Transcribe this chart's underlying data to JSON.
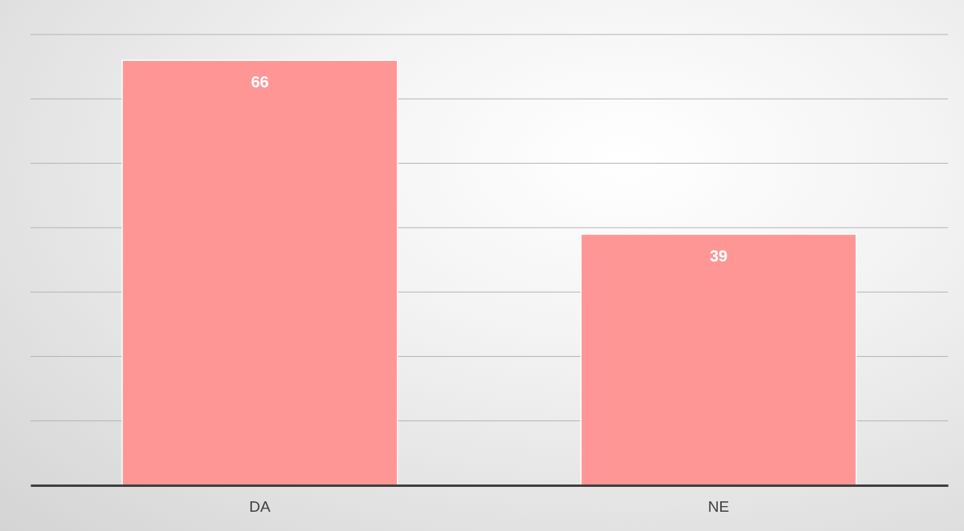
{
  "chart_data": {
    "type": "bar",
    "categories": [
      "DA",
      "NE"
    ],
    "values": [
      66,
      39
    ],
    "color": "#ff9696",
    "ylim": [
      0,
      70
    ],
    "yticks": [
      {
        "value": 0,
        "label": null
      },
      {
        "value": 10,
        "label": null
      },
      {
        "value": 20,
        "label": null
      },
      {
        "value": 30,
        "label": null
      },
      {
        "value": 40,
        "label": null
      },
      {
        "value": 50,
        "label": null
      },
      {
        "value": 60,
        "label": null
      },
      {
        "value": 70,
        "label": null
      }
    ],
    "grid": "y",
    "tick_labels": "x",
    "data_labels": true
  }
}
